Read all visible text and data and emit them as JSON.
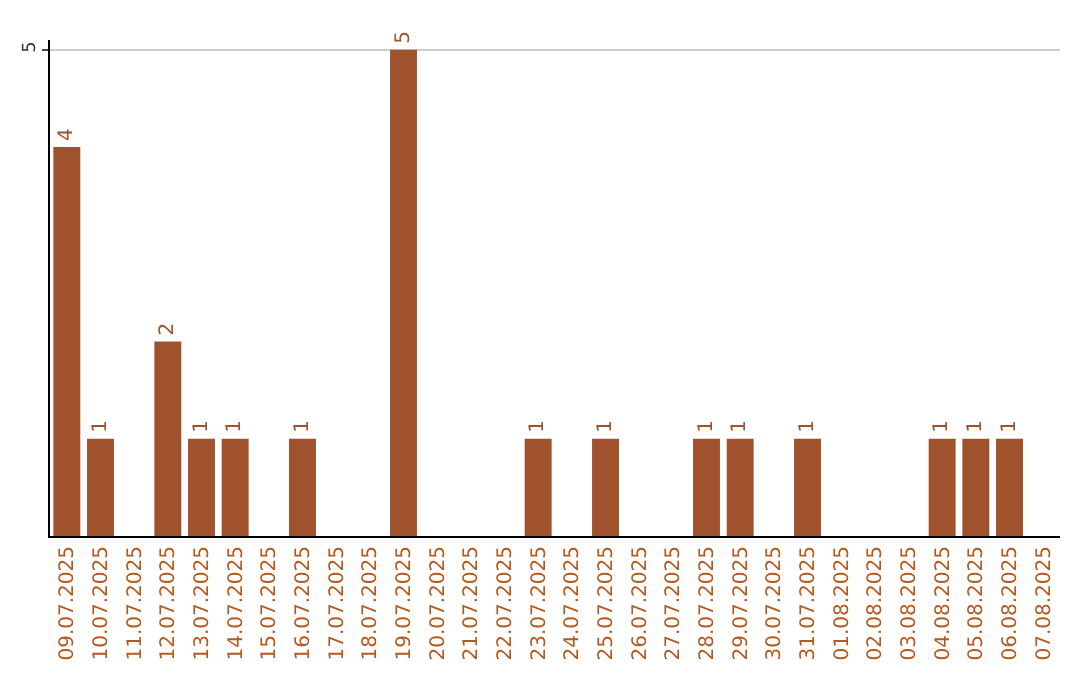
{
  "chart_data": {
    "type": "bar",
    "categories": [
      "09.07.2025",
      "10.07.2025",
      "11.07.2025",
      "12.07.2025",
      "13.07.2025",
      "14.07.2025",
      "15.07.2025",
      "16.07.2025",
      "17.07.2025",
      "18.07.2025",
      "19.07.2025",
      "20.07.2025",
      "21.07.2025",
      "22.07.2025",
      "23.07.2025",
      "24.07.2025",
      "25.07.2025",
      "26.07.2025",
      "27.07.2025",
      "28.07.2025",
      "29.07.2025",
      "30.07.2025",
      "31.07.2025",
      "01.08.2025",
      "02.08.2025",
      "03.08.2025",
      "04.08.2025",
      "05.08.2025",
      "06.08.2025",
      "07.08.2025"
    ],
    "values": [
      4,
      1,
      0,
      2,
      1,
      1,
      0,
      1,
      0,
      0,
      5,
      0,
      0,
      0,
      1,
      0,
      1,
      0,
      0,
      1,
      1,
      0,
      1,
      0,
      0,
      0,
      1,
      1,
      1,
      0
    ],
    "value_labels": [
      "4",
      "1",
      null,
      "2",
      "1",
      "1",
      null,
      "1",
      null,
      null,
      "5",
      null,
      null,
      null,
      "1",
      null,
      "1",
      null,
      null,
      "1",
      "1",
      null,
      "1",
      null,
      null,
      null,
      "1",
      "1",
      "1",
      null
    ],
    "color": "#a0522d",
    "ylim": [
      0,
      5.1
    ],
    "yticks": [
      5
    ],
    "grid": "y",
    "legend": false
  }
}
